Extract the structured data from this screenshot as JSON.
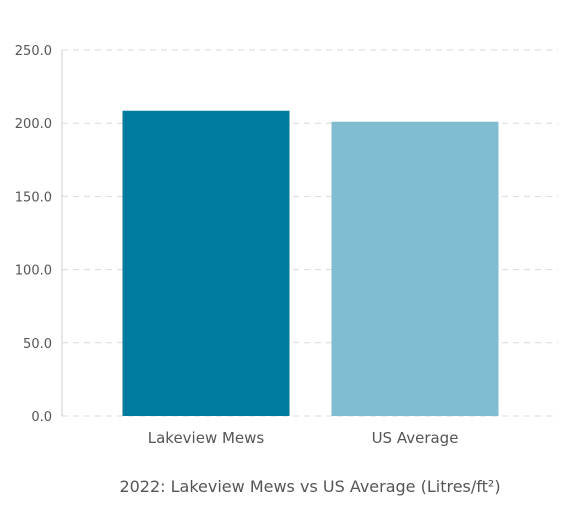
{
  "chart_data": {
    "type": "bar",
    "title": "2022: Lakeview Mews vs US Average (Litres/ft²)",
    "xlabel": "",
    "ylabel": "",
    "categories": [
      "Lakeview Mews",
      "US Average"
    ],
    "values": [
      208.5,
      201.0
    ],
    "colors": [
      "#007a9e",
      "#80bdd1"
    ],
    "ylim": [
      0,
      250
    ],
    "yticks": [
      "0.0",
      "50.0",
      "100.0",
      "150.0",
      "200.0",
      "250.0"
    ],
    "ytick_values": [
      0,
      50,
      100,
      150,
      200,
      250
    ],
    "grid": true,
    "grid_color": "#d9d9d9",
    "text_color": "#555555",
    "legend": "none"
  }
}
